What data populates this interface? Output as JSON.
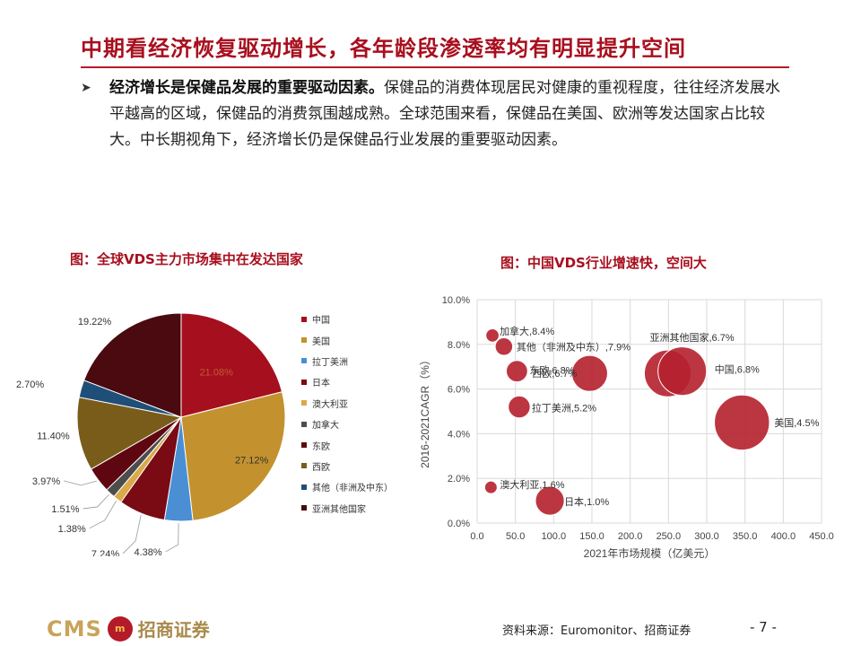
{
  "header": {
    "title": "中期看经济恢复驱动增长，各年龄段渗透率均有明显提升空间"
  },
  "bullet": {
    "arrow": "➤",
    "bold": "经济增长是保健品发展的重要驱动因素。",
    "text": "保健品的消费体现居民对健康的重视程度，往往经济发展水平越高的区域，保健品的消费氛围越成熟。全球范围来看，保健品在美国、欧洲等发达国家占比较大。中长期视角下，经济增长仍是保健品行业发展的重要驱动因素。"
  },
  "left_chart_title": "图：全球VDS主力市场集中在发达国家",
  "right_chart_title": "图：中国VDS行业增速快，空间大",
  "chart_data": [
    {
      "type": "pie",
      "title": "图：全球VDS主力市场集中在发达国家",
      "legend_position": "right",
      "slices": [
        {
          "name": "中国",
          "value": 21.08,
          "label": "21.08%",
          "color": "#a50f1e"
        },
        {
          "name": "美国",
          "value": 27.12,
          "label": "27.12%",
          "color": "#c3922e"
        },
        {
          "name": "拉丁美洲",
          "value": 4.38,
          "label": "4.38%",
          "color": "#4a8fd4"
        },
        {
          "name": "日本",
          "value": 7.24,
          "label": "7.24%",
          "color": "#7a0a14"
        },
        {
          "name": "澳大利亚",
          "value": 1.38,
          "label": "1.38%",
          "color": "#d9a94a"
        },
        {
          "name": "加拿大",
          "value": 1.51,
          "label": "1.51%",
          "color": "#4d4d4d"
        },
        {
          "name": "东欧",
          "value": 3.97,
          "label": "3.97%",
          "color": "#5e0711"
        },
        {
          "name": "西欧",
          "value": 11.4,
          "label": "11.40%",
          "color": "#7a5c1a"
        },
        {
          "name": "其他（非洲及中东）",
          "value": 2.7,
          "label": "2.70%",
          "color": "#1f4e79"
        },
        {
          "name": "亚洲其他国家",
          "value": 19.22,
          "label": "19.22%",
          "color": "#4a0a0f"
        }
      ]
    },
    {
      "type": "scatter",
      "title": "图：中国VDS行业增速快，空间大",
      "xlabel": "2021年市场规模（亿美元）",
      "ylabel": "2016-2021CAGR（%）",
      "xlim": [
        0,
        450
      ],
      "ylim": [
        0,
        10
      ],
      "x_ticks": [
        "0.0",
        "50.0",
        "100.0",
        "150.0",
        "200.0",
        "250.0",
        "300.0",
        "350.0",
        "400.0",
        "450.0"
      ],
      "y_ticks": [
        "0.0%",
        "2.0%",
        "4.0%",
        "6.0%",
        "8.0%",
        "10.0%"
      ],
      "grid": true,
      "color": "#b5202e",
      "points": [
        {
          "name": "加拿大",
          "x": 20,
          "y": 8.4,
          "label": "加拿大,8.4%"
        },
        {
          "name": "其他（非洲及中东）",
          "x": 35,
          "y": 7.9,
          "label": "其他（非洲及中东）,7.9%"
        },
        {
          "name": "东欧",
          "x": 52,
          "y": 6.8,
          "label": "东欧,6.8%"
        },
        {
          "name": "西欧",
          "x": 147,
          "y": 6.7,
          "label": "西欧,6.7%"
        },
        {
          "name": "亚洲其他国家",
          "x": 249,
          "y": 6.7,
          "label": "亚洲其他国家,6.7%"
        },
        {
          "name": "中国",
          "x": 268,
          "y": 6.8,
          "label": "中国,6.8%"
        },
        {
          "name": "拉丁美洲",
          "x": 55,
          "y": 5.2,
          "label": "拉丁美洲,5.2%"
        },
        {
          "name": "美国",
          "x": 346,
          "y": 4.5,
          "label": "美国,4.5%"
        },
        {
          "name": "澳大利亚",
          "x": 18,
          "y": 1.6,
          "label": "澳大利亚,1.6%"
        },
        {
          "name": "日本",
          "x": 95,
          "y": 1.0,
          "label": "日本,1.0%"
        }
      ]
    }
  ],
  "footer": {
    "logo_text": "CMS",
    "logo_cn": "招商证券",
    "source": "资料来源：Euromonitor、招商证券",
    "page": "- 7 -"
  }
}
